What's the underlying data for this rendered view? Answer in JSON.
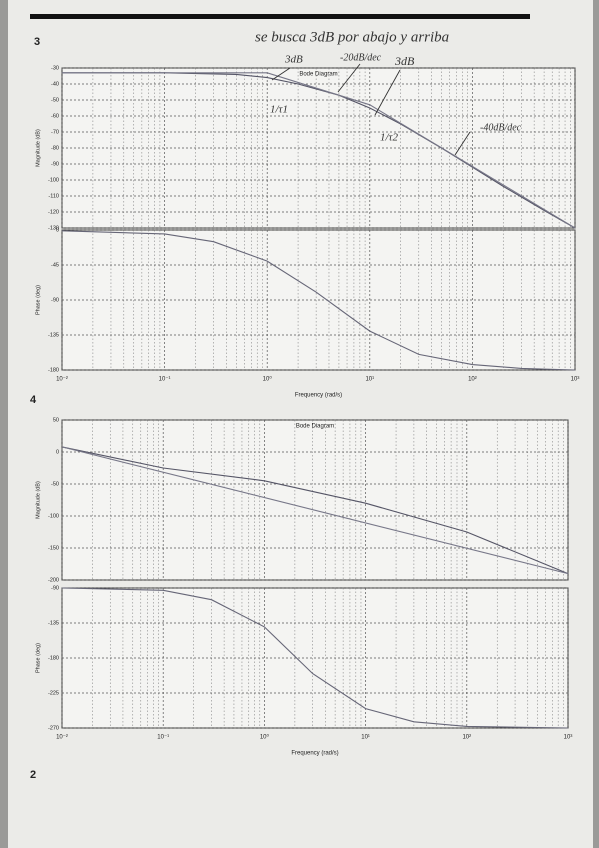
{
  "page_numbers": [
    "3",
    "4",
    "2"
  ],
  "annotations": [
    "se busca 3dB por abajo y arriba",
    "3dB",
    "-20dB/dec",
    "3dB",
    "1/τ1",
    "1/τ2",
    "-40dB/dec"
  ],
  "chart_data": [
    {
      "type": "line",
      "title": "Bode Diagram",
      "ylabel": "Magnitude (dB)",
      "xscale": "log",
      "grid": true,
      "xlim": [
        0.01,
        1000
      ],
      "xticks": [
        0.01,
        0.1,
        1,
        10,
        100,
        1000
      ],
      "ylim": [
        -130,
        -30
      ],
      "yticks": [
        -30,
        -40,
        -50,
        -60,
        -70,
        -80,
        -90,
        -100,
        -110,
        -120,
        -130
      ],
      "series": [
        {
          "color": "#556",
          "x": [
            0.01,
            0.1,
            0.5,
            1,
            2,
            5,
            10,
            20,
            50,
            100,
            200,
            500,
            1000
          ],
          "values": [
            -33,
            -33,
            -34,
            -36,
            -40,
            -47,
            -55,
            -65,
            -80,
            -92,
            -104,
            -119,
            -130
          ]
        },
        {
          "color": "#778",
          "x": [
            0.01,
            1,
            10,
            1000
          ],
          "values": [
            -33,
            -33,
            -53,
            -130
          ]
        }
      ]
    },
    {
      "type": "line",
      "ylabel": "Phase (deg)",
      "xlabel": "Frequency (rad/s)",
      "xscale": "log",
      "grid": true,
      "xlim": [
        0.01,
        1000
      ],
      "xticks": [
        {
          "value": 0.01,
          "label": "10⁻²"
        },
        {
          "value": 0.1,
          "label": "10⁻¹"
        },
        {
          "value": 1,
          "label": "10⁰"
        },
        {
          "value": 10,
          "label": "10¹"
        },
        {
          "value": 100,
          "label": "10²"
        },
        {
          "value": 1000,
          "label": "10³"
        }
      ],
      "ylim": [
        -180,
        0
      ],
      "yticks": [
        0,
        -45,
        -90,
        -135,
        -180
      ],
      "series": [
        {
          "color": "#667",
          "x": [
            0.01,
            0.1,
            0.3,
            1,
            3,
            10,
            30,
            100,
            300,
            1000
          ],
          "values": [
            -1,
            -5,
            -15,
            -40,
            -80,
            -130,
            -160,
            -173,
            -178,
            -180
          ]
        }
      ]
    },
    {
      "type": "line",
      "title": "Bode Diagram",
      "ylabel": "Magnitude (dB)",
      "xscale": "log",
      "grid": true,
      "xlim": [
        0.01,
        1000
      ],
      "xticks": [
        0.01,
        0.1,
        1,
        10,
        100,
        1000
      ],
      "ylim": [
        -200,
        50
      ],
      "yticks": [
        50,
        0,
        -50,
        -100,
        -150,
        -200
      ],
      "series": [
        {
          "color": "#556",
          "x": [
            0.01,
            0.1,
            1,
            10,
            100,
            1000
          ],
          "values": [
            8,
            -25,
            -45,
            -80,
            -125,
            -190
          ]
        },
        {
          "color": "#778",
          "x": [
            0.01,
            1000
          ],
          "values": [
            8,
            -190
          ]
        }
      ]
    },
    {
      "type": "line",
      "ylabel": "Phase (deg)",
      "xlabel": "Frequency (rad/s)",
      "xscale": "log",
      "grid": true,
      "xlim": [
        0.01,
        1000
      ],
      "xticks": [
        {
          "value": 0.01,
          "label": "10⁻²"
        },
        {
          "value": 0.1,
          "label": "10⁻¹"
        },
        {
          "value": 1,
          "label": "10⁰"
        },
        {
          "value": 10,
          "label": "10¹"
        },
        {
          "value": 100,
          "label": "10²"
        },
        {
          "value": 1000,
          "label": "10³"
        }
      ],
      "ylim": [
        -270,
        -90
      ],
      "yticks": [
        -90,
        -135,
        -180,
        -225,
        -270
      ],
      "series": [
        {
          "color": "#667",
          "x": [
            0.01,
            0.1,
            0.3,
            1,
            3,
            10,
            30,
            100,
            1000
          ],
          "values": [
            -90,
            -93,
            -105,
            -140,
            -200,
            -245,
            -262,
            -268,
            -270
          ]
        }
      ]
    }
  ]
}
